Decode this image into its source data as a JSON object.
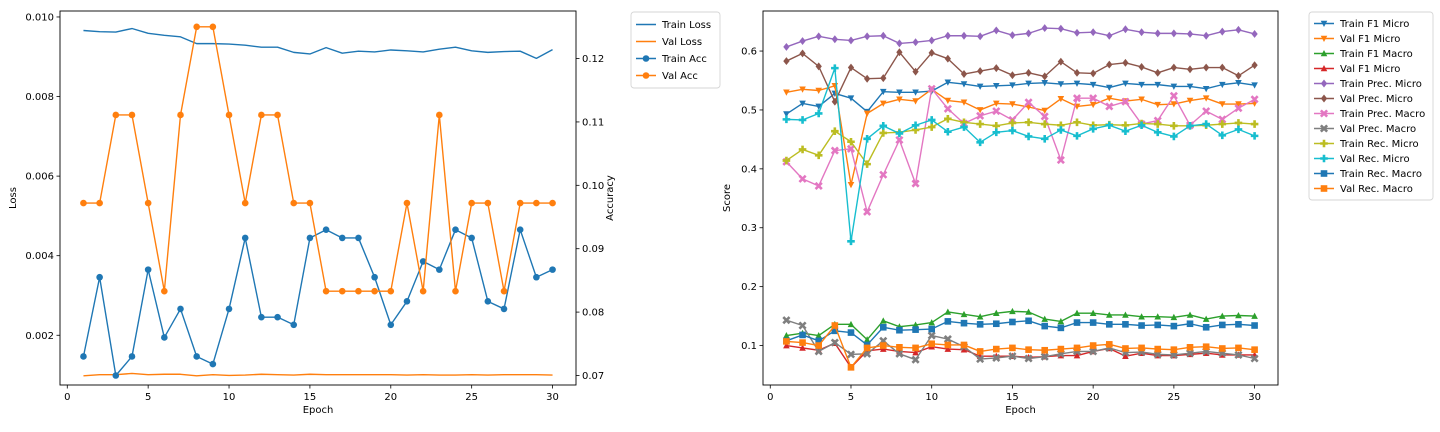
{
  "chart_data": [
    {
      "type": "line",
      "x": [
        1,
        2,
        3,
        4,
        5,
        6,
        7,
        8,
        9,
        10,
        11,
        12,
        13,
        14,
        15,
        16,
        17,
        18,
        19,
        20,
        21,
        22,
        23,
        24,
        25,
        26,
        27,
        28,
        29,
        30
      ],
      "xlabel": "Epoch",
      "xlim": [
        -0.45,
        31.45
      ],
      "xticks": [
        0,
        5,
        10,
        15,
        20,
        25,
        30
      ],
      "ylabel": "Loss",
      "ylim": [
        0.00075,
        0.01015
      ],
      "yticks": [
        0.002,
        0.004,
        0.006,
        0.008,
        0.01
      ],
      "ytick_labels": [
        "0.002",
        "0.004",
        "0.006",
        "0.008",
        "0.010"
      ],
      "ylabel_right": "Accuracy",
      "ylim_right": [
        0.0685,
        0.1275
      ],
      "yticks_right": [
        0.07,
        0.08,
        0.09,
        0.1,
        0.11,
        0.12
      ],
      "ytick_labels_right": [
        "0.07",
        "0.08",
        "0.09",
        "0.10",
        "0.11",
        "0.12"
      ],
      "legend_position": "outside-right-top",
      "grid": false,
      "series": [
        {
          "name": "Train Loss",
          "axis": "left",
          "color": "#1f77b4",
          "marker": "none",
          "values": [
            0.00966,
            0.00963,
            0.00962,
            0.00971,
            0.00959,
            0.00954,
            0.0095,
            0.00933,
            0.00933,
            0.00932,
            0.00929,
            0.00924,
            0.00924,
            0.00911,
            0.00907,
            0.00923,
            0.00909,
            0.00914,
            0.00912,
            0.00917,
            0.00915,
            0.00912,
            0.00919,
            0.00924,
            0.00915,
            0.00911,
            0.00913,
            0.00914,
            0.00896,
            0.00918
          ]
        },
        {
          "name": "Val Loss",
          "axis": "left",
          "color": "#ff7f0e",
          "marker": "none",
          "values": [
            0.00098,
            0.00101,
            0.00101,
            0.00104,
            0.00101,
            0.00102,
            0.00102,
            0.00098,
            0.00101,
            0.00099,
            0.001,
            0.00102,
            0.00101,
            0.001,
            0.00102,
            0.00101,
            0.00101,
            0.00101,
            0.00101,
            0.00101,
            0.001,
            0.00101,
            0.001,
            0.001,
            0.00101,
            0.001,
            0.00101,
            0.00101,
            0.00101,
            0.001
          ]
        },
        {
          "name": "Train Acc",
          "axis": "right",
          "color": "#1f77b4",
          "marker": "circle",
          "values": [
            0.073,
            0.0855,
            0.07,
            0.073,
            0.0867,
            0.076,
            0.0805,
            0.073,
            0.0718,
            0.0805,
            0.0917,
            0.0792,
            0.0792,
            0.078,
            0.0917,
            0.093,
            0.0917,
            0.0917,
            0.0855,
            0.078,
            0.0817,
            0.088,
            0.0867,
            0.093,
            0.0917,
            0.0817,
            0.0805,
            0.093,
            0.0855,
            0.0867
          ]
        },
        {
          "name": "Val Acc",
          "axis": "right",
          "color": "#ff7f0e",
          "marker": "circle",
          "values": [
            0.0972,
            0.0972,
            0.1111,
            0.1111,
            0.0972,
            0.0833,
            0.1111,
            0.125,
            0.125,
            0.1111,
            0.0972,
            0.1111,
            0.1111,
            0.0972,
            0.0972,
            0.0833,
            0.0833,
            0.0833,
            0.0833,
            0.0833,
            0.0972,
            0.0833,
            0.1111,
            0.0833,
            0.0972,
            0.0972,
            0.0833,
            0.0972,
            0.0972,
            0.0972
          ]
        }
      ]
    },
    {
      "type": "line",
      "x": [
        1,
        2,
        3,
        4,
        5,
        6,
        7,
        8,
        9,
        10,
        11,
        12,
        13,
        14,
        15,
        16,
        17,
        18,
        19,
        20,
        21,
        22,
        23,
        24,
        25,
        26,
        27,
        28,
        29,
        30
      ],
      "xlabel": "Epoch",
      "xlim": [
        -0.45,
        31.45
      ],
      "xticks": [
        0,
        5,
        10,
        15,
        20,
        25,
        30
      ],
      "ylabel": "Score",
      "ylim": [
        0.033,
        0.668
      ],
      "yticks": [
        0.1,
        0.2,
        0.3,
        0.4,
        0.5,
        0.6
      ],
      "ytick_labels": [
        "0.1",
        "0.2",
        "0.3",
        "0.4",
        "0.5",
        "0.6"
      ],
      "legend_position": "outside-right-top",
      "grid": false,
      "series": [
        {
          "name": "Train F1 Micro",
          "color": "#1f77b4",
          "marker": "triangle-down",
          "values": [
            0.493,
            0.511,
            0.506,
            0.528,
            0.52,
            0.497,
            0.531,
            0.53,
            0.53,
            0.532,
            0.547,
            0.544,
            0.54,
            0.541,
            0.542,
            0.545,
            0.546,
            0.544,
            0.545,
            0.543,
            0.538,
            0.545,
            0.543,
            0.543,
            0.54,
            0.54,
            0.536,
            0.543,
            0.546,
            0.542
          ]
        },
        {
          "name": "Val F1 Micro",
          "color": "#ff7f0e",
          "marker": "triangle-down",
          "values": [
            0.53,
            0.535,
            0.533,
            0.541,
            0.373,
            0.494,
            0.511,
            0.518,
            0.515,
            0.535,
            0.516,
            0.513,
            0.5,
            0.511,
            0.51,
            0.505,
            0.499,
            0.519,
            0.506,
            0.509,
            0.52,
            0.515,
            0.518,
            0.509,
            0.51,
            0.516,
            0.52,
            0.51,
            0.51,
            0.511
          ]
        },
        {
          "name": "Train F1 Macro",
          "color": "#2ca02c",
          "marker": "triangle-up",
          "values": [
            0.117,
            0.121,
            0.117,
            0.136,
            0.136,
            0.11,
            0.142,
            0.132,
            0.135,
            0.139,
            0.157,
            0.153,
            0.149,
            0.155,
            0.158,
            0.157,
            0.145,
            0.141,
            0.155,
            0.155,
            0.152,
            0.152,
            0.149,
            0.149,
            0.148,
            0.152,
            0.145,
            0.15,
            0.151,
            0.15
          ]
        },
        {
          "name": "Val F1 Micro",
          "color": "#d62728",
          "marker": "triangle-up",
          "values": [
            0.1,
            0.096,
            0.092,
            0.104,
            0.063,
            0.091,
            0.094,
            0.09,
            0.088,
            0.098,
            0.094,
            0.093,
            0.082,
            0.082,
            0.082,
            0.08,
            0.081,
            0.083,
            0.083,
            0.09,
            0.095,
            0.082,
            0.087,
            0.083,
            0.083,
            0.085,
            0.087,
            0.084,
            0.084,
            0.084
          ]
        },
        {
          "name": "Train Prec. Micro",
          "color": "#9467bd",
          "marker": "diamond",
          "values": [
            0.607,
            0.617,
            0.625,
            0.62,
            0.618,
            0.625,
            0.626,
            0.613,
            0.615,
            0.618,
            0.626,
            0.626,
            0.625,
            0.635,
            0.627,
            0.63,
            0.639,
            0.638,
            0.631,
            0.632,
            0.626,
            0.637,
            0.632,
            0.63,
            0.63,
            0.629,
            0.626,
            0.633,
            0.636,
            0.629
          ]
        },
        {
          "name": "Val Prec. Micro",
          "color": "#8c564b",
          "marker": "diamond",
          "values": [
            0.583,
            0.596,
            0.574,
            0.514,
            0.572,
            0.553,
            0.554,
            0.598,
            0.565,
            0.597,
            0.587,
            0.561,
            0.566,
            0.571,
            0.559,
            0.563,
            0.557,
            0.582,
            0.563,
            0.562,
            0.577,
            0.58,
            0.573,
            0.563,
            0.572,
            0.569,
            0.572,
            0.572,
            0.558,
            0.576
          ]
        },
        {
          "name": "Train Prec. Macro",
          "color": "#e377c2",
          "marker": "x",
          "values": [
            0.412,
            0.383,
            0.371,
            0.431,
            0.434,
            0.327,
            0.39,
            0.449,
            0.375,
            0.536,
            0.502,
            0.477,
            0.49,
            0.498,
            0.483,
            0.513,
            0.489,
            0.415,
            0.52,
            0.52,
            0.506,
            0.514,
            0.476,
            0.482,
            0.524,
            0.474,
            0.498,
            0.484,
            0.503,
            0.518
          ]
        },
        {
          "name": "Val Prec. Macro",
          "color": "#7f7f7f",
          "marker": "x",
          "values": [
            0.143,
            0.134,
            0.09,
            0.105,
            0.085,
            0.086,
            0.108,
            0.086,
            0.076,
            0.117,
            0.111,
            0.098,
            0.077,
            0.079,
            0.082,
            0.078,
            0.081,
            0.086,
            0.09,
            0.09,
            0.096,
            0.088,
            0.089,
            0.085,
            0.084,
            0.087,
            0.09,
            0.087,
            0.084,
            0.078
          ]
        },
        {
          "name": "Train Rec. Micro",
          "color": "#bcbd22",
          "marker": "plus",
          "values": [
            0.414,
            0.433,
            0.423,
            0.464,
            0.446,
            0.408,
            0.461,
            0.462,
            0.466,
            0.471,
            0.485,
            0.479,
            0.476,
            0.473,
            0.478,
            0.479,
            0.476,
            0.474,
            0.479,
            0.474,
            0.475,
            0.474,
            0.477,
            0.476,
            0.473,
            0.473,
            0.474,
            0.476,
            0.478,
            0.476
          ]
        },
        {
          "name": "Val Rec. Micro",
          "color": "#17becf",
          "marker": "plus",
          "values": [
            0.484,
            0.483,
            0.494,
            0.571,
            0.277,
            0.451,
            0.473,
            0.46,
            0.474,
            0.483,
            0.463,
            0.471,
            0.445,
            0.462,
            0.465,
            0.455,
            0.451,
            0.466,
            0.456,
            0.468,
            0.474,
            0.464,
            0.474,
            0.462,
            0.455,
            0.473,
            0.476,
            0.457,
            0.467,
            0.456
          ]
        },
        {
          "name": "Train Rec. Macro",
          "color": "#1f77b4",
          "marker": "square",
          "values": [
            0.108,
            0.118,
            0.108,
            0.125,
            0.122,
            0.101,
            0.131,
            0.126,
            0.127,
            0.128,
            0.141,
            0.138,
            0.136,
            0.137,
            0.14,
            0.142,
            0.133,
            0.13,
            0.139,
            0.139,
            0.136,
            0.136,
            0.134,
            0.135,
            0.133,
            0.137,
            0.131,
            0.135,
            0.136,
            0.134
          ]
        },
        {
          "name": "Val Rec. Macro",
          "color": "#ff7f0e",
          "marker": "square",
          "values": [
            0.107,
            0.105,
            0.1,
            0.134,
            0.063,
            0.096,
            0.1,
            0.097,
            0.096,
            0.103,
            0.101,
            0.101,
            0.09,
            0.094,
            0.096,
            0.093,
            0.092,
            0.094,
            0.096,
            0.1,
            0.102,
            0.095,
            0.096,
            0.094,
            0.093,
            0.097,
            0.098,
            0.095,
            0.096,
            0.093
          ]
        }
      ]
    }
  ]
}
